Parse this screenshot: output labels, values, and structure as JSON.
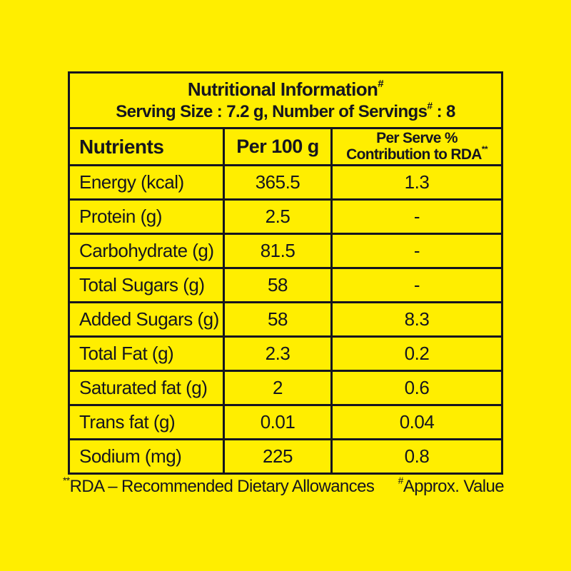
{
  "colors": {
    "background": "#FFEE00",
    "ink": "#15151F"
  },
  "label": {
    "title": "Nutritional Information",
    "title_sup": "#",
    "serving_prefix": "Serving Size : 7.2 g, Number of Servings",
    "serving_sup": "#",
    "serving_suffix": " : 8"
  },
  "table": {
    "columns": {
      "col1": "Nutrients",
      "col2": "Per 100 g",
      "col3_line1": "Per Serve %",
      "col3_line2": "Contribution to RDA",
      "col3_sup": "**"
    },
    "rows": [
      {
        "label": "Energy (kcal)",
        "per100g": "365.5",
        "rda": "1.3"
      },
      {
        "label": "Protein (g)",
        "per100g": "2.5",
        "rda": "-"
      },
      {
        "label": "Carbohydrate (g)",
        "per100g": "81.5",
        "rda": "-"
      },
      {
        "label": "Total Sugars (g)",
        "per100g": "58",
        "rda": "-"
      },
      {
        "label": "Added Sugars (g)",
        "per100g": "58",
        "rda": "8.3"
      },
      {
        "label": "Total Fat (g)",
        "per100g": "2.3",
        "rda": "0.2"
      },
      {
        "label": "Saturated fat (g)",
        "per100g": "2",
        "rda": "0.6"
      },
      {
        "label": "Trans fat (g)",
        "per100g": "0.01",
        "rda": "0.04"
      },
      {
        "label": "Sodium (mg)",
        "per100g": "225",
        "rda": "0.8"
      }
    ]
  },
  "footnotes": {
    "left_sup": "**",
    "left_text": "RDA – Recommended Dietary Allowances",
    "right_sup": "#",
    "right_text": "Approx. Value"
  }
}
